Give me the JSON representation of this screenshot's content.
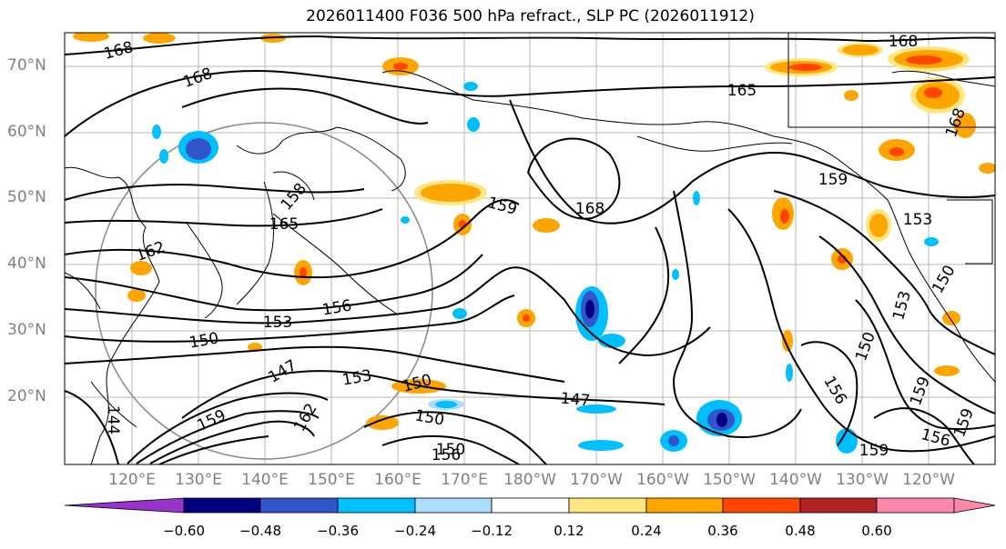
{
  "title": "2026011400 F036 500 hPa refract., SLP PC (2026011912)",
  "lat_labels": [
    "70°N",
    "60°N",
    "50°N",
    "40°N",
    "30°N",
    "20°N"
  ],
  "lon_labels": [
    "120°E",
    "130°E",
    "140°E",
    "150°E",
    "160°E",
    "170°E",
    "180°W",
    "170°W",
    "160°W",
    "150°W",
    "140°W",
    "130°W",
    "120°W"
  ],
  "contour_labels": [
    "168",
    "168",
    "168",
    "165",
    "165",
    "168",
    "168",
    "159",
    "159",
    "162",
    "153",
    "156",
    "153",
    "150",
    "153",
    "150",
    "147",
    "150",
    "147",
    "159",
    "162",
    "144",
    "150",
    "156",
    "159",
    "156",
    "159",
    "159",
    "150",
    "153",
    "150",
    "156",
    "158"
  ],
  "colorbar": {
    "colors": [
      "#9933cc",
      "#000080",
      "#3355cc",
      "#00bfff",
      "#aaddff",
      "#ffffff",
      "#ffe680",
      "#ffa500",
      "#ff4500",
      "#b22222",
      "#ff88aa"
    ],
    "tick_labels": [
      "−0.60",
      "−0.48",
      "−0.36",
      "−0.24",
      "−0.12",
      "0.12",
      "0.24",
      "0.36",
      "0.48",
      "0.60"
    ]
  }
}
